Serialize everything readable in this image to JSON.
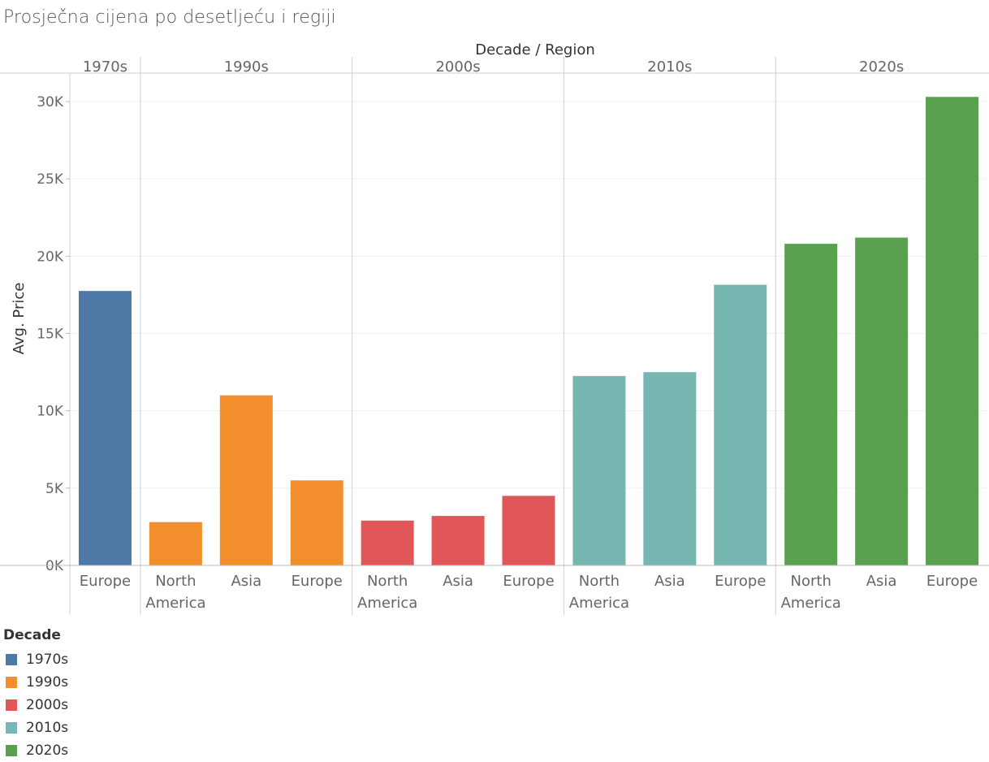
{
  "chart_data": {
    "type": "bar",
    "title": "Prosječna cijena po desetljeću i regiji",
    "header_label": "Decade / Region",
    "ylabel": "Avg. Price",
    "ylim": [
      0,
      32000
    ],
    "yticks": [
      {
        "value": 0,
        "label": "0K"
      },
      {
        "value": 5000,
        "label": "5K"
      },
      {
        "value": 10000,
        "label": "10K"
      },
      {
        "value": 15000,
        "label": "15K"
      },
      {
        "value": 20000,
        "label": "20K"
      },
      {
        "value": 25000,
        "label": "25K"
      },
      {
        "value": 30000,
        "label": "30K"
      }
    ],
    "groups": [
      {
        "decade": "1970s",
        "color": "#4e79a7",
        "bars": [
          {
            "region": "Europe",
            "value": 17750
          }
        ]
      },
      {
        "decade": "1990s",
        "color": "#f28e2b",
        "bars": [
          {
            "region": "North America",
            "value": 2800
          },
          {
            "region": "Asia",
            "value": 11000
          },
          {
            "region": "Europe",
            "value": 5500
          }
        ]
      },
      {
        "decade": "2000s",
        "color": "#e15759",
        "bars": [
          {
            "region": "North America",
            "value": 2900
          },
          {
            "region": "Asia",
            "value": 3200
          },
          {
            "region": "Europe",
            "value": 4500
          }
        ]
      },
      {
        "decade": "2010s",
        "color": "#76b7b2",
        "bars": [
          {
            "region": "North America",
            "value": 12250
          },
          {
            "region": "Asia",
            "value": 12500
          },
          {
            "region": "Europe",
            "value": 18150
          }
        ]
      },
      {
        "decade": "2020s",
        "color": "#59a14f",
        "bars": [
          {
            "region": "North America",
            "value": 20800
          },
          {
            "region": "Asia",
            "value": 21200
          },
          {
            "region": "Europe",
            "value": 30300
          }
        ]
      }
    ],
    "legend": {
      "title": "Decade",
      "items": [
        {
          "label": "1970s",
          "color": "#4e79a7"
        },
        {
          "label": "1990s",
          "color": "#f28e2b"
        },
        {
          "label": "2000s",
          "color": "#e15759"
        },
        {
          "label": "2010s",
          "color": "#76b7b2"
        },
        {
          "label": "2020s",
          "color": "#59a14f"
        }
      ]
    }
  }
}
